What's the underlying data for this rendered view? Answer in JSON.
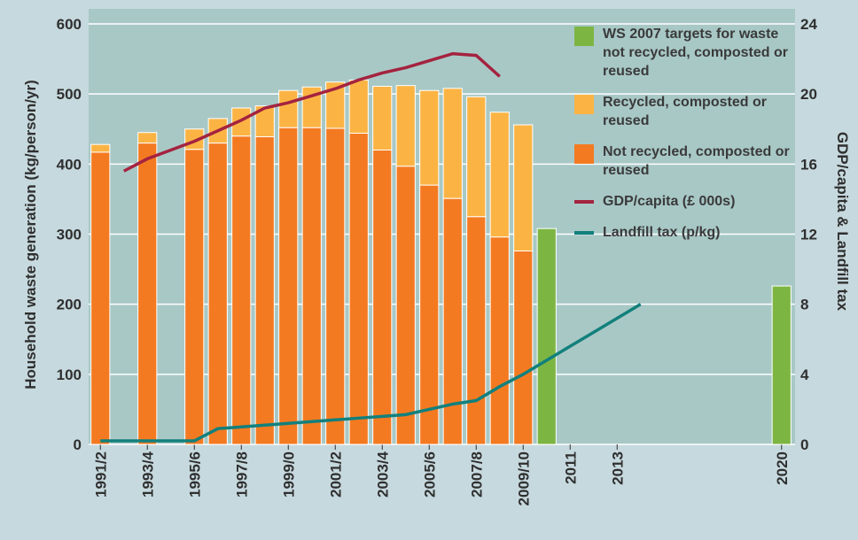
{
  "chart_data": {
    "type": "bar",
    "categories": [
      "1991/2",
      null,
      "1993/4",
      null,
      "1995/6",
      null,
      "1997/8",
      null,
      "1999/0",
      null,
      "2001/2",
      null,
      "2003/4",
      null,
      "2005/6",
      null,
      "2007/8",
      null,
      "2009/10",
      null,
      "2011",
      null,
      "2013",
      null,
      null,
      null,
      null,
      null,
      null,
      "2020"
    ],
    "y_label": "Household waste generation (kg/person/yr)",
    "y2_label": "GDP/capita & Landfill tax",
    "ylim": [
      0,
      600
    ],
    "yticks": [
      0,
      100,
      200,
      300,
      400,
      500,
      600
    ],
    "y2lim": [
      0,
      24
    ],
    "y2ticks": [
      0,
      4,
      8,
      12,
      16,
      20,
      24
    ],
    "grid": true,
    "legend": "upper right",
    "stacked": true,
    "series": [
      {
        "name": "WS 2007 targets for waste not recycled, composted or reused",
        "color": "#7db543",
        "type": "bar",
        "stack": false,
        "values": [
          null,
          null,
          null,
          null,
          null,
          null,
          null,
          null,
          null,
          null,
          null,
          null,
          null,
          null,
          null,
          null,
          null,
          null,
          null,
          308,
          null,
          null,
          null,
          null,
          null,
          null,
          null,
          null,
          null,
          226
        ]
      },
      {
        "name": "Recycled, composted or reused",
        "color": "#fbb444",
        "type": "bar",
        "stack": true,
        "values": [
          11,
          null,
          15,
          null,
          29,
          35,
          40,
          44,
          53,
          58,
          66,
          76,
          91,
          115,
          135,
          157,
          171,
          178,
          180,
          null,
          null,
          null,
          null,
          null,
          null,
          null,
          null,
          null,
          null,
          null
        ]
      },
      {
        "name": "Not recycled, composted or reused",
        "color": "#f47a21",
        "type": "bar",
        "stack": true,
        "values": [
          417,
          null,
          430,
          null,
          421,
          430,
          440,
          439,
          452,
          452,
          451,
          444,
          420,
          397,
          370,
          351,
          325,
          296,
          276,
          null,
          null,
          null,
          null,
          null,
          null,
          null,
          null,
          null,
          null,
          null
        ]
      },
      {
        "name": "GDP/capita (£ 000s)",
        "color": "#a4233f",
        "type": "line",
        "axis": "y2",
        "values": [
          null,
          15.6,
          16.3,
          16.8,
          17.3,
          17.9,
          18.5,
          19.2,
          19.5,
          19.9,
          20.3,
          20.8,
          21.2,
          21.5,
          21.9,
          22.3,
          22.2,
          21.0,
          null,
          null,
          null,
          null,
          null,
          null,
          null,
          null,
          null,
          null,
          null,
          null
        ]
      },
      {
        "name": "Landfill tax (p/kg)",
        "color": "#12807c",
        "type": "line",
        "axis": "y2",
        "values": [
          0.2,
          0.2,
          0.2,
          0.2,
          0.2,
          0.9,
          1.0,
          1.1,
          1.2,
          1.3,
          1.4,
          1.5,
          1.6,
          1.7,
          2.0,
          2.3,
          2.5,
          3.3,
          4.0,
          4.8,
          5.6,
          6.4,
          7.2,
          8.0,
          null,
          null,
          null,
          null,
          null,
          null
        ]
      }
    ]
  }
}
